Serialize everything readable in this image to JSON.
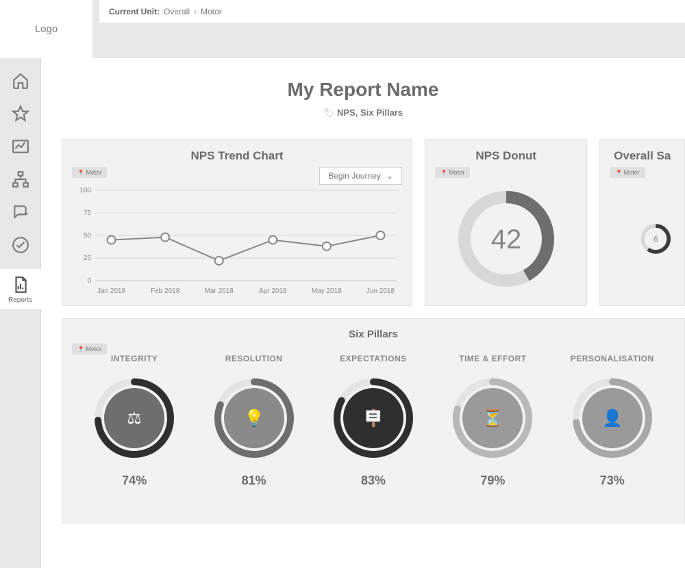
{
  "logo_text": "Logo",
  "breadcrumb": {
    "label": "Current Unit:",
    "items": [
      "Overall",
      "Motor"
    ]
  },
  "sidebar": {
    "items": [
      {
        "name": "home",
        "label": "Home"
      },
      {
        "name": "star",
        "label": "Star"
      },
      {
        "name": "chart",
        "label": "Trends"
      },
      {
        "name": "hierarchy",
        "label": "Org"
      },
      {
        "name": "chat",
        "label": "Chat"
      },
      {
        "name": "check",
        "label": "Check"
      },
      {
        "name": "reports",
        "label": "Reports",
        "active": true
      }
    ]
  },
  "page": {
    "title": "My Report Name",
    "tags": "NPS, Six Pillars"
  },
  "motor_chip": "Motor",
  "nps_trend": {
    "title": "NPS Trend Chart",
    "dropdown": "Begin Journey",
    "type": "line",
    "ylim": [
      0,
      100
    ],
    "yticks": [
      0,
      25,
      50,
      75,
      100
    ],
    "x_labels": [
      "Jan 2018",
      "Feb 2018",
      "Mar 2018",
      "Apr 2018",
      "May 2018",
      "Jun 2018"
    ],
    "values": [
      45,
      48,
      22,
      45,
      38,
      50
    ],
    "line_color": "#888888",
    "marker_color": "#ffffff",
    "marker_border": "#888888",
    "marker_size": 6,
    "grid_color": "#d8d8d8",
    "axis_color": "#c0c0c0",
    "tick_font_size": 10,
    "background_color": "#f2f2f2"
  },
  "nps_donut": {
    "title": "NPS Donut",
    "type": "donut",
    "value": 42,
    "max": 100,
    "ring_thickness": 18,
    "radius": 70,
    "arc_color": "#6e6e6e",
    "track_color": "#d8d8d8",
    "bg_color": "#f2f2f2",
    "value_color": "#888888",
    "value_font_size": 40
  },
  "overall_donut": {
    "title": "Overall Sa",
    "type": "donut",
    "value": 6,
    "display": "6",
    "max": 10,
    "ring_thickness": 18,
    "radius": 70,
    "arc_color": "#3a3a3a",
    "track_color": "#d8d8d8",
    "value_color": "#888888"
  },
  "pillars": {
    "title": "Six Pillars",
    "ring_thickness": 10,
    "radius": 58,
    "track_color": "#e4e4e4",
    "items": [
      {
        "label": "INTEGRITY",
        "pct": 74,
        "arc_color": "#2f2f2f",
        "inner_fill": "#6e6e6e",
        "glyph": "⚖"
      },
      {
        "label": "RESOLUTION",
        "pct": 81,
        "arc_color": "#6e6e6e",
        "inner_fill": "#8a8a8a",
        "glyph": "💡"
      },
      {
        "label": "EXPECTATIONS",
        "pct": 83,
        "arc_color": "#2f2f2f",
        "inner_fill": "#2f2f2f",
        "glyph": "🪧"
      },
      {
        "label": "TIME & EFFORT",
        "pct": 79,
        "arc_color": "#b8b8b8",
        "inner_fill": "#9a9a9a",
        "glyph": "⏳"
      },
      {
        "label": "PERSONALISATION",
        "pct": 73,
        "arc_color": "#a8a8a8",
        "inner_fill": "#9a9a9a",
        "glyph": "👤"
      }
    ]
  },
  "colors": {
    "page_bg": "#e8e8e8",
    "card_bg": "#f2f2f2",
    "card_border": "#e2e2e2",
    "text_primary": "#6b6b6b",
    "text_secondary": "#888888"
  }
}
